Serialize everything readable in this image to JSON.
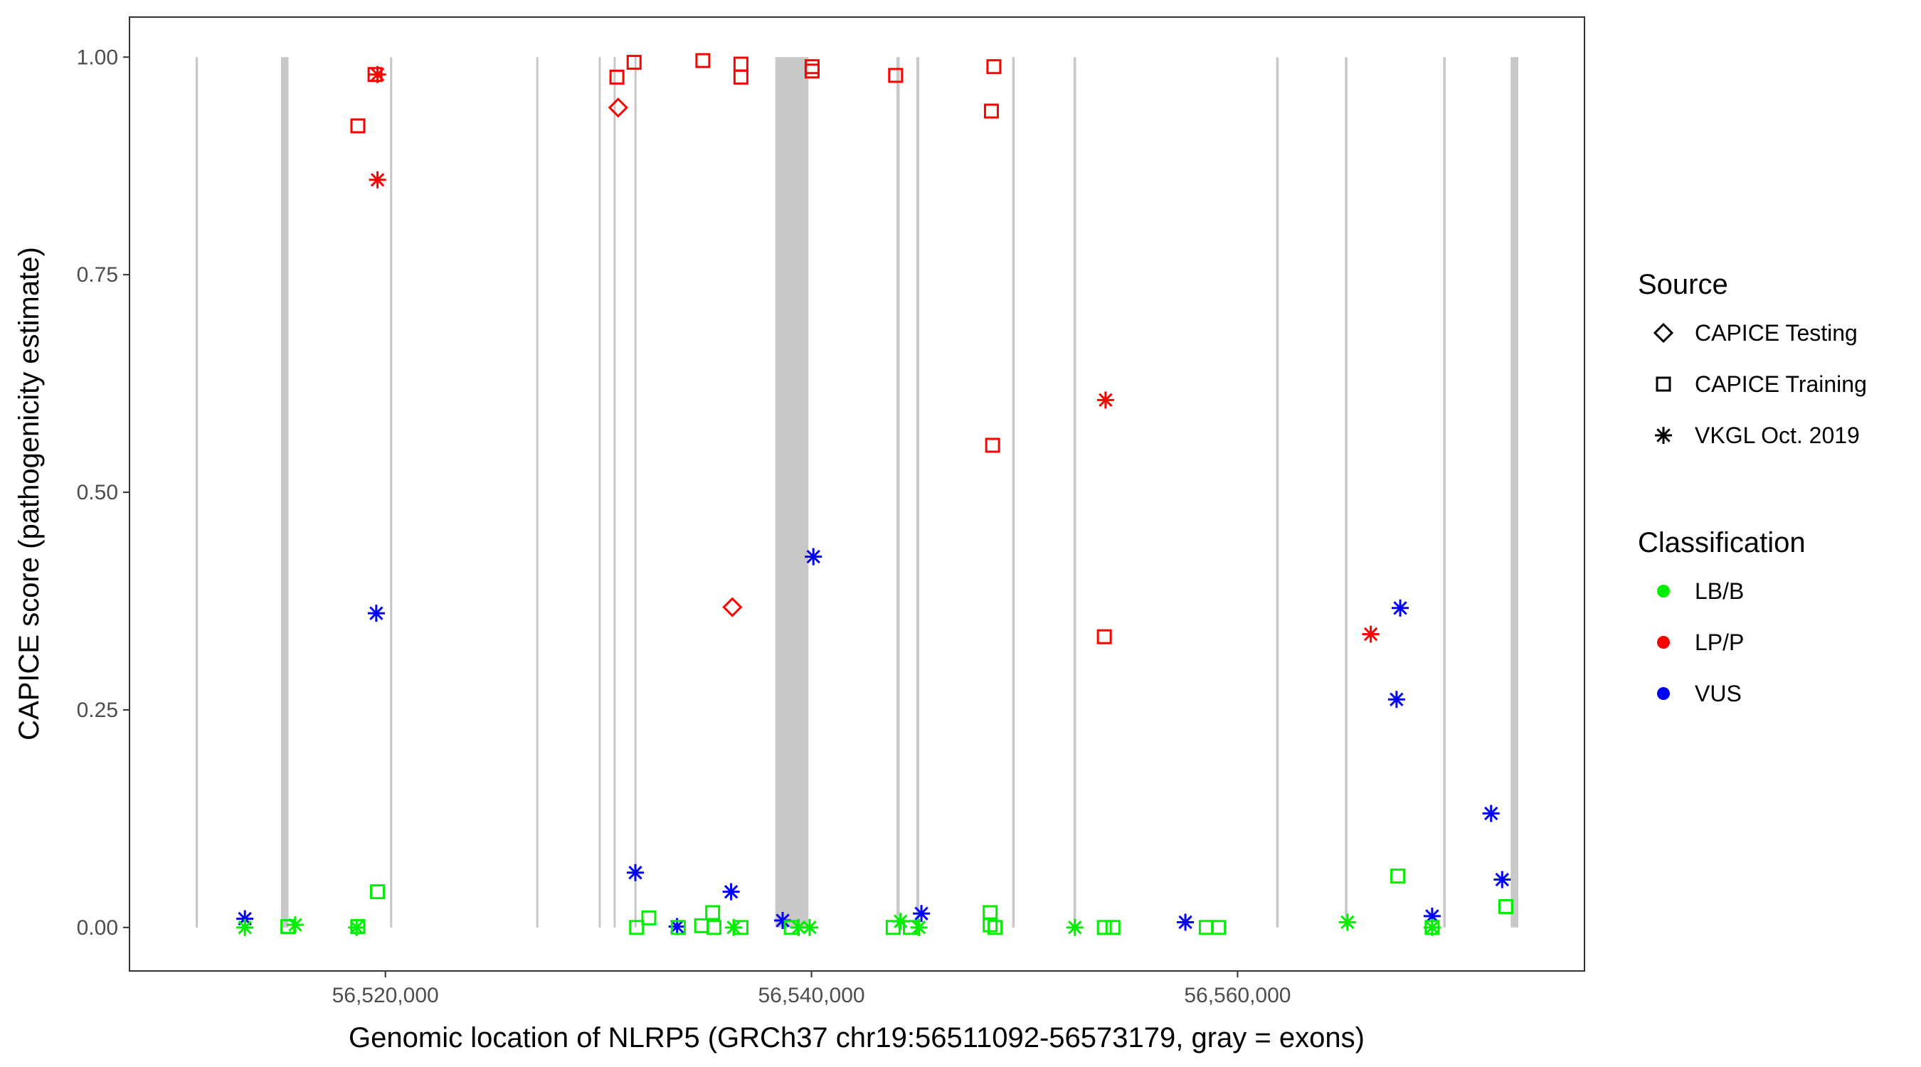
{
  "chart_data": {
    "type": "scatter",
    "xlabel": "Genomic location of NLRP5 (GRCh37 chr19:56511092-56573179, gray = exons)",
    "ylabel": "CAPICE score (pathogenicity estimate)",
    "xlim": [
      56507988,
      56576283
    ],
    "ylim": [
      -0.05,
      1.046
    ],
    "x_ticks": [
      56520000,
      56540000,
      56560000
    ],
    "x_tick_labels": [
      "56,520,000",
      "56,540,000",
      "56,560,000"
    ],
    "y_ticks": [
      0,
      0.25,
      0.5,
      0.75,
      1.0
    ],
    "y_tick_labels": [
      "0.00",
      "0.25",
      "0.50",
      "0.75",
      "1.00"
    ],
    "grid": false,
    "exon_color": "#c8c8c8",
    "exons": [
      [
        56511092,
        56511200
      ],
      [
        56515100,
        56515450
      ],
      [
        56520220,
        56520310
      ],
      [
        56527080,
        56527160
      ],
      [
        56530010,
        56530110
      ],
      [
        56530710,
        56530800
      ],
      [
        56531690,
        56531780
      ],
      [
        56538302,
        56539858
      ],
      [
        56543990,
        56544140
      ],
      [
        56544920,
        56545060
      ],
      [
        56549420,
        56549540
      ],
      [
        56552300,
        56552420
      ],
      [
        56561810,
        56561930
      ],
      [
        56565040,
        56565160
      ],
      [
        56569650,
        56569770
      ],
      [
        56572820,
        56573179
      ]
    ],
    "legend_placement": "right",
    "legend": {
      "source_title": "Source",
      "source_items": [
        {
          "key": "D",
          "label": "CAPICE Testing",
          "shape": "diamond"
        },
        {
          "key": "S",
          "label": "CAPICE Training",
          "shape": "square"
        },
        {
          "key": "V",
          "label": "VKGL Oct. 2019",
          "shape": "asterisk"
        }
      ],
      "class_title": "Classification",
      "class_items": [
        {
          "key": "LB/B",
          "label": "LB/B",
          "color": "#00ee00"
        },
        {
          "key": "LP/P",
          "label": "LP/P",
          "color": "#ff0000"
        },
        {
          "key": "VUS",
          "label": "VUS",
          "color": "#0000ff"
        }
      ]
    },
    "points": [
      {
        "x": 56519514,
        "y": 0.98,
        "source": "S",
        "class": "LP/P"
      },
      {
        "x": 56519629,
        "y": 0.98,
        "source": "V",
        "class": "LP/P"
      },
      {
        "x": 56518707,
        "y": 0.921,
        "source": "S",
        "class": "LP/P"
      },
      {
        "x": 56519629,
        "y": 0.859,
        "source": "V",
        "class": "LP/P"
      },
      {
        "x": 56530867,
        "y": 0.977,
        "source": "S",
        "class": "LP/P"
      },
      {
        "x": 56530925,
        "y": 0.942,
        "source": "D",
        "class": "LP/P"
      },
      {
        "x": 56531674,
        "y": 0.994,
        "source": "S",
        "class": "LP/P"
      },
      {
        "x": 56534902,
        "y": 0.996,
        "source": "S",
        "class": "LP/P"
      },
      {
        "x": 56536688,
        "y": 0.992,
        "source": "S",
        "class": "LP/P"
      },
      {
        "x": 56536688,
        "y": 0.977,
        "source": "S",
        "class": "LP/P"
      },
      {
        "x": 56540030,
        "y": 0.989,
        "source": "S",
        "class": "LP/P"
      },
      {
        "x": 56540030,
        "y": 0.984,
        "source": "S",
        "class": "LP/P"
      },
      {
        "x": 56543949,
        "y": 0.979,
        "source": "S",
        "class": "LP/P"
      },
      {
        "x": 56548561,
        "y": 0.989,
        "source": "S",
        "class": "LP/P"
      },
      {
        "x": 56548445,
        "y": 0.938,
        "source": "S",
        "class": "LP/P"
      },
      {
        "x": 56548503,
        "y": 0.554,
        "source": "S",
        "class": "LP/P"
      },
      {
        "x": 56553804,
        "y": 0.606,
        "source": "V",
        "class": "LP/P"
      },
      {
        "x": 56553746,
        "y": 0.334,
        "source": "S",
        "class": "LP/P"
      },
      {
        "x": 56566252,
        "y": 0.337,
        "source": "V",
        "class": "LP/P"
      },
      {
        "x": 56536285,
        "y": 0.368,
        "source": "D",
        "class": "LP/P"
      },
      {
        "x": 56519572,
        "y": 0.361,
        "source": "V",
        "class": "VUS"
      },
      {
        "x": 56540088,
        "y": 0.426,
        "source": "V",
        "class": "VUS"
      },
      {
        "x": 56567635,
        "y": 0.367,
        "source": "V",
        "class": "VUS"
      },
      {
        "x": 56567462,
        "y": 0.262,
        "source": "V",
        "class": "VUS"
      },
      {
        "x": 56571900,
        "y": 0.131,
        "source": "V",
        "class": "VUS"
      },
      {
        "x": 56572419,
        "y": 0.055,
        "source": "V",
        "class": "VUS"
      },
      {
        "x": 56569133,
        "y": 0.013,
        "source": "V",
        "class": "VUS"
      },
      {
        "x": 56531732,
        "y": 0.063,
        "source": "V",
        "class": "VUS"
      },
      {
        "x": 56536227,
        "y": 0.041,
        "source": "V",
        "class": "VUS"
      },
      {
        "x": 56538647,
        "y": 0.008,
        "source": "V",
        "class": "VUS"
      },
      {
        "x": 56533691,
        "y": 0.001,
        "source": "V",
        "class": "VUS"
      },
      {
        "x": 56545160,
        "y": 0.016,
        "source": "V",
        "class": "VUS"
      },
      {
        "x": 56557550,
        "y": 0.006,
        "source": "V",
        "class": "VUS"
      },
      {
        "x": 56513405,
        "y": 0.01,
        "source": "V",
        "class": "VUS"
      },
      {
        "x": 56513405,
        "y": 0.0,
        "source": "V",
        "class": "LB/B"
      },
      {
        "x": 56515422,
        "y": 0.001,
        "source": "S",
        "class": "LB/B"
      },
      {
        "x": 56515768,
        "y": 0.003,
        "source": "V",
        "class": "LB/B"
      },
      {
        "x": 56518650,
        "y": 0.0,
        "source": "V",
        "class": "LB/B"
      },
      {
        "x": 56518707,
        "y": 0.001,
        "source": "S",
        "class": "LB/B"
      },
      {
        "x": 56519629,
        "y": 0.041,
        "source": "S",
        "class": "LB/B"
      },
      {
        "x": 56531790,
        "y": 0.0,
        "source": "S",
        "class": "LB/B"
      },
      {
        "x": 56532365,
        "y": 0.011,
        "source": "S",
        "class": "LB/B"
      },
      {
        "x": 56533749,
        "y": 0.0,
        "source": "S",
        "class": "LB/B"
      },
      {
        "x": 56534844,
        "y": 0.002,
        "source": "S",
        "class": "LB/B"
      },
      {
        "x": 56535362,
        "y": 0.017,
        "source": "S",
        "class": "LB/B"
      },
      {
        "x": 56535420,
        "y": 0.0,
        "source": "S",
        "class": "LB/B"
      },
      {
        "x": 56536343,
        "y": 0.0,
        "source": "V",
        "class": "LB/B"
      },
      {
        "x": 56536688,
        "y": 0.0,
        "source": "S",
        "class": "LB/B"
      },
      {
        "x": 56539051,
        "y": 0.0,
        "source": "S",
        "class": "LB/B"
      },
      {
        "x": 56539396,
        "y": 0.0,
        "source": "V",
        "class": "LB/B"
      },
      {
        "x": 56539915,
        "y": 0.0,
        "source": "V",
        "class": "LB/B"
      },
      {
        "x": 56543834,
        "y": 0.0,
        "source": "S",
        "class": "LB/B"
      },
      {
        "x": 56544180,
        "y": 0.007,
        "source": "V",
        "class": "LB/B"
      },
      {
        "x": 56544641,
        "y": 0.0,
        "source": "S",
        "class": "LB/B"
      },
      {
        "x": 56545044,
        "y": 0.0,
        "source": "V",
        "class": "LB/B"
      },
      {
        "x": 56548387,
        "y": 0.017,
        "source": "S",
        "class": "LB/B"
      },
      {
        "x": 56548387,
        "y": 0.003,
        "source": "S",
        "class": "LB/B"
      },
      {
        "x": 56548618,
        "y": 0.0,
        "source": "S",
        "class": "LB/B"
      },
      {
        "x": 56552363,
        "y": 0.0,
        "source": "V",
        "class": "LB/B"
      },
      {
        "x": 56553746,
        "y": 0.0,
        "source": "S",
        "class": "LB/B"
      },
      {
        "x": 56554150,
        "y": 0.0,
        "source": "S",
        "class": "LB/B"
      },
      {
        "x": 56558530,
        "y": 0.0,
        "source": "S",
        "class": "LB/B"
      },
      {
        "x": 56559106,
        "y": 0.0,
        "source": "S",
        "class": "LB/B"
      },
      {
        "x": 56565157,
        "y": 0.006,
        "source": "V",
        "class": "LB/B"
      },
      {
        "x": 56567520,
        "y": 0.059,
        "source": "S",
        "class": "LB/B"
      },
      {
        "x": 56569133,
        "y": 0.0,
        "source": "V",
        "class": "LB/B"
      },
      {
        "x": 56569133,
        "y": 0.0,
        "source": "S",
        "class": "LB/B"
      },
      {
        "x": 56572592,
        "y": 0.024,
        "source": "S",
        "class": "LB/B"
      }
    ]
  }
}
